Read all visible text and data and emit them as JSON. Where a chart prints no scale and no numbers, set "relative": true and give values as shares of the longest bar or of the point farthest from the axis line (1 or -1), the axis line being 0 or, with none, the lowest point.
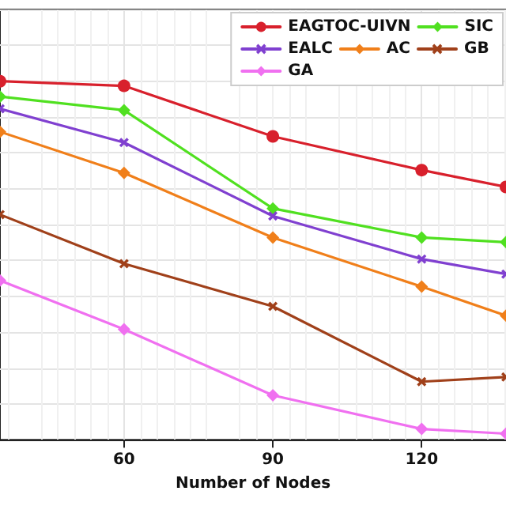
{
  "chart_data": {
    "type": "line",
    "xlabel": "Number of Nodes",
    "x": [
      35,
      60,
      90,
      120,
      137
    ],
    "xlim": [
      35,
      137
    ],
    "xticks": [
      60,
      90,
      120
    ],
    "relative": true,
    "grid": true,
    "legend": "top right",
    "tick_labels": "x",
    "series": [
      {
        "name": "EAGTOC-UIVN",
        "color": "#d8202c",
        "marker": "circle",
        "values": [
          1,
          0.987,
          0.846,
          0.752,
          0.705
        ]
      },
      {
        "name": "SIC",
        "color": "#50e020",
        "marker": "diamond",
        "values": [
          0.957,
          0.919,
          0.645,
          0.564,
          0.551
        ]
      },
      {
        "name": "EALC",
        "color": "#8040d0",
        "marker": "cross",
        "values": [
          0.923,
          0.829,
          0.624,
          0.504,
          0.462
        ]
      },
      {
        "name": "AC",
        "color": "#f07f1a",
        "marker": "diamond",
        "values": [
          0.859,
          0.744,
          0.564,
          0.427,
          0.346
        ]
      },
      {
        "name": "GB",
        "color": "#a0401a",
        "marker": "cross",
        "values": [
          0.628,
          0.491,
          0.372,
          0.162,
          0.175
        ]
      },
      {
        "name": "GA",
        "color": "#f070f0",
        "marker": "diamond",
        "values": [
          0.444,
          0.308,
          0.124,
          0.03,
          0.017
        ]
      }
    ]
  }
}
